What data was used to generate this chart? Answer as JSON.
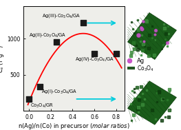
{
  "x_data": [
    0.0,
    0.1,
    0.25,
    0.5,
    0.6,
    0.8
  ],
  "y_data": [
    160,
    330,
    960,
    1220,
    790,
    790
  ],
  "curve_color": "#ff0000",
  "point_color": "#1a1a1a",
  "point_size": 35,
  "xlim": [
    -0.05,
    0.88
  ],
  "ylim": [
    0,
    1450
  ],
  "yticks": [
    500,
    1000
  ],
  "xticks": [
    0.0,
    0.2,
    0.4,
    0.6,
    0.8
  ],
  "bg_color": "#eeeeea",
  "legend_ag_color": "#cc55cc",
  "legend_co3o4_color": "#225522",
  "cyan_color": "#00ccdd",
  "label_fontsize": 4.8,
  "tick_fontsize": 5.5,
  "ylabel_fontsize": 6.0,
  "xlabel_fontsize": 6.0
}
